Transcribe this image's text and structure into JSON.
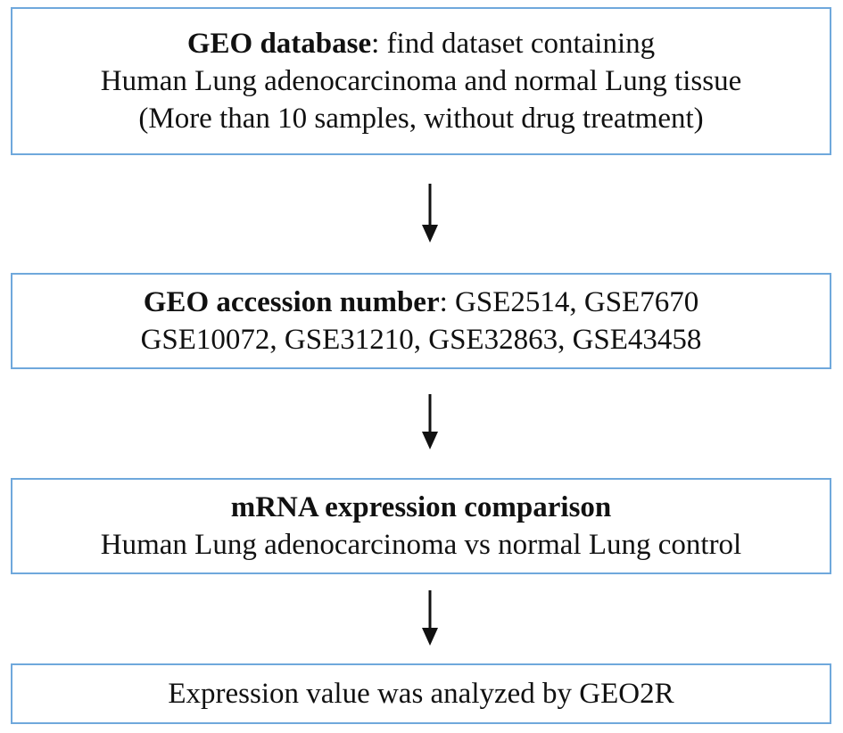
{
  "step1": {
    "title": "GEO database",
    "title_suffix": ": find dataset containing",
    "line2": "Human Lung adenocarcinoma and normal Lung tissue",
    "line3": "(More than 10 samples, without drug treatment)"
  },
  "step2": {
    "title": "GEO accession number",
    "title_suffix": ": GSE2514, GSE7670",
    "line2": "GSE10072, GSE31210, GSE32863, GSE43458"
  },
  "step3": {
    "title": "mRNA expression comparison",
    "line2": "Human Lung adenocarcinoma vs normal Lung control"
  },
  "step4": {
    "line1": "Expression value was analyzed by GEO2R"
  },
  "colors": {
    "box_border": "#6fa8dc",
    "arrow": "#111111"
  }
}
